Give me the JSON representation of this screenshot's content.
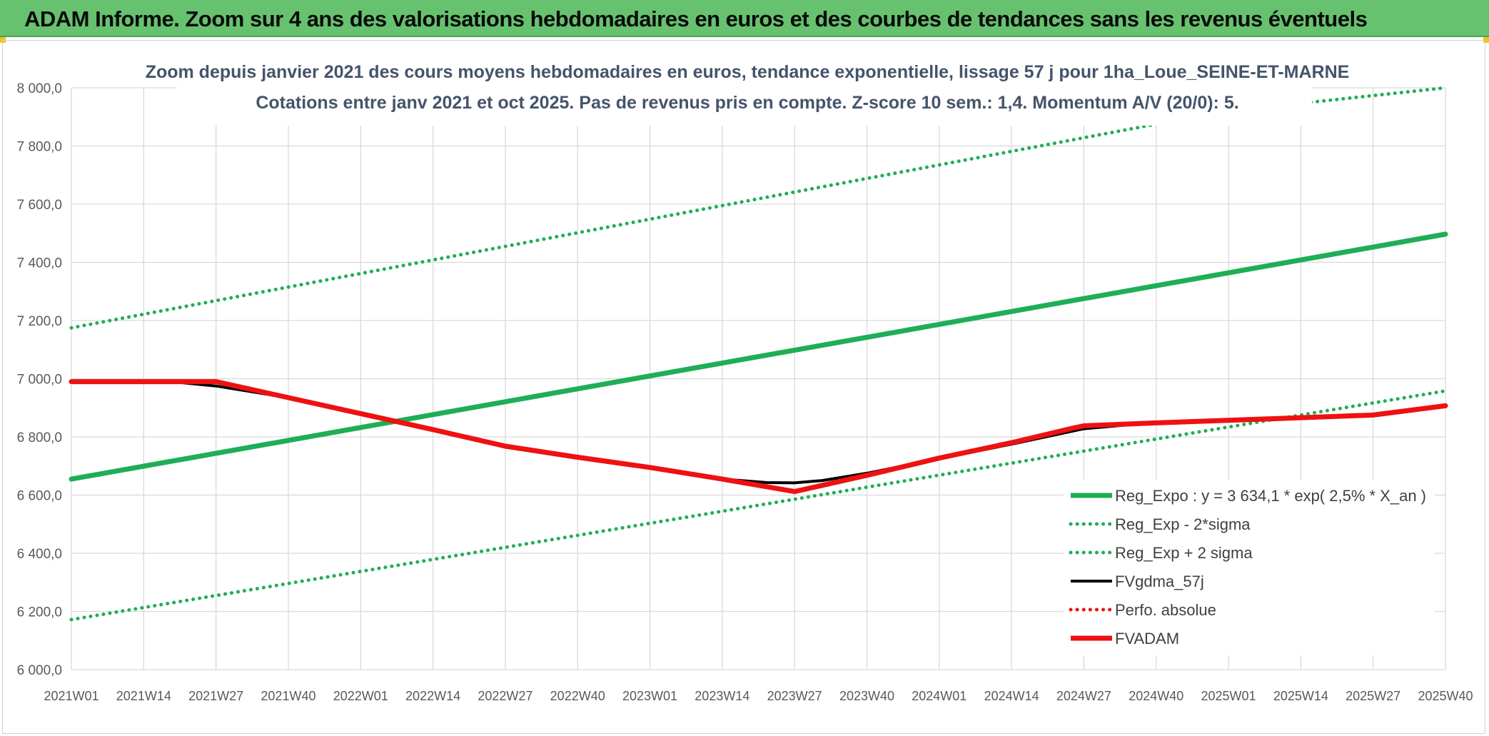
{
  "banner": {
    "title": "ADAM Informe. Zoom sur 4 ans des valorisations hebdomadaires en euros et des courbes de tendances sans les revenus éventuels"
  },
  "colors": {
    "banner_bg": "#66c26e",
    "trend_green": "#1fae55",
    "black": "#000000",
    "red": "#ee1111"
  },
  "chart_data": {
    "type": "line",
    "title": "Zoom depuis janvier 2021 des cours moyens hebdomadaires en euros, tendance exponentielle, lissage 57 j pour 1ha_Loue_SEINE-ET-MARNE",
    "subtitle": "Cotations entre janv 2021 et oct 2025. Pas de revenus pris en compte. Z-score 10 sem.: 1,4. Momentum A/V (20/0): 5.",
    "xlabel": "",
    "ylabel": "",
    "ylim": [
      6000,
      8000
    ],
    "yticks": [
      6000,
      6200,
      6400,
      6600,
      6800,
      7000,
      7200,
      7400,
      7600,
      7800,
      8000
    ],
    "ytick_labels": [
      "6 000,0",
      "6 200,0",
      "6 400,0",
      "6 600,0",
      "6 800,0",
      "7 000,0",
      "7 200,0",
      "7 400,0",
      "7 600,0",
      "7 800,0",
      "8 000,0"
    ],
    "x_count": 248,
    "x_ticks": [
      {
        "index": 0,
        "label": "2021W01"
      },
      {
        "index": 13,
        "label": "2021W14"
      },
      {
        "index": 26,
        "label": "2021W27"
      },
      {
        "index": 39,
        "label": "2021W40"
      },
      {
        "index": 52,
        "label": "2022W01"
      },
      {
        "index": 65,
        "label": "2022W14"
      },
      {
        "index": 78,
        "label": "2022W27"
      },
      {
        "index": 91,
        "label": "2022W40"
      },
      {
        "index": 104,
        "label": "2023W01"
      },
      {
        "index": 117,
        "label": "2023W14"
      },
      {
        "index": 130,
        "label": "2023W27"
      },
      {
        "index": 143,
        "label": "2023W40"
      },
      {
        "index": 156,
        "label": "2024W01"
      },
      {
        "index": 169,
        "label": "2024W14"
      },
      {
        "index": 182,
        "label": "2024W27"
      },
      {
        "index": 195,
        "label": "2024W40"
      },
      {
        "index": 208,
        "label": "2025W01"
      },
      {
        "index": 221,
        "label": "2025W14"
      },
      {
        "index": 234,
        "label": "2025W27"
      },
      {
        "index": 247,
        "label": "2025W40"
      }
    ],
    "series": [
      {
        "name": "Reg_Expo : y = 3 634,1 * exp( 2,5% *  X_an )",
        "style": "solid-thick",
        "color": "#1fae55",
        "points": [
          [
            0,
            6655
          ],
          [
            247,
            7497
          ]
        ]
      },
      {
        "name": "Reg_Exp - 2*sigma",
        "style": "dotted",
        "color": "#1fae55",
        "points": [
          [
            0,
            6172
          ],
          [
            247,
            6958
          ]
        ]
      },
      {
        "name": "Reg_Exp + 2 sigma",
        "style": "dotted",
        "color": "#1fae55",
        "points": [
          [
            0,
            7175
          ],
          [
            39,
            7315
          ],
          [
            78,
            7455
          ],
          [
            117,
            7595
          ],
          [
            156,
            7735
          ],
          [
            195,
            7875
          ],
          [
            208,
            7920
          ],
          [
            247,
            8060
          ]
        ],
        "clip_max": 8000
      },
      {
        "name": "FVgdma_57j",
        "style": "solid",
        "color": "#000000",
        "points": [
          [
            0,
            6990
          ],
          [
            18,
            6990
          ],
          [
            26,
            6975
          ],
          [
            39,
            6935
          ],
          [
            52,
            6880
          ],
          [
            65,
            6825
          ],
          [
            78,
            6765
          ],
          [
            91,
            6728
          ],
          [
            104,
            6693
          ],
          [
            117,
            6655
          ],
          [
            125,
            6643
          ],
          [
            130,
            6642
          ],
          [
            135,
            6650
          ],
          [
            143,
            6675
          ],
          [
            156,
            6725
          ],
          [
            169,
            6775
          ],
          [
            182,
            6828
          ],
          [
            195,
            6850
          ],
          [
            208,
            6857
          ],
          [
            221,
            6868
          ],
          [
            234,
            6875
          ],
          [
            247,
            6907
          ]
        ]
      },
      {
        "name": "Perfo. absolue",
        "style": "dotted",
        "color": "#ee1111",
        "points": []
      },
      {
        "name": "FVADAM",
        "style": "solid-thick",
        "color": "#ee1111",
        "points": [
          [
            0,
            6990
          ],
          [
            26,
            6990
          ],
          [
            39,
            6935
          ],
          [
            52,
            6880
          ],
          [
            65,
            6825
          ],
          [
            78,
            6768
          ],
          [
            91,
            6730
          ],
          [
            104,
            6695
          ],
          [
            117,
            6655
          ],
          [
            130,
            6612
          ],
          [
            143,
            6668
          ],
          [
            156,
            6727
          ],
          [
            169,
            6780
          ],
          [
            180,
            6830
          ],
          [
            182,
            6838
          ],
          [
            195,
            6848
          ],
          [
            208,
            6857
          ],
          [
            221,
            6866
          ],
          [
            234,
            6875
          ],
          [
            247,
            6907
          ]
        ]
      }
    ],
    "legend_position": "bottom-right",
    "grid": true
  }
}
